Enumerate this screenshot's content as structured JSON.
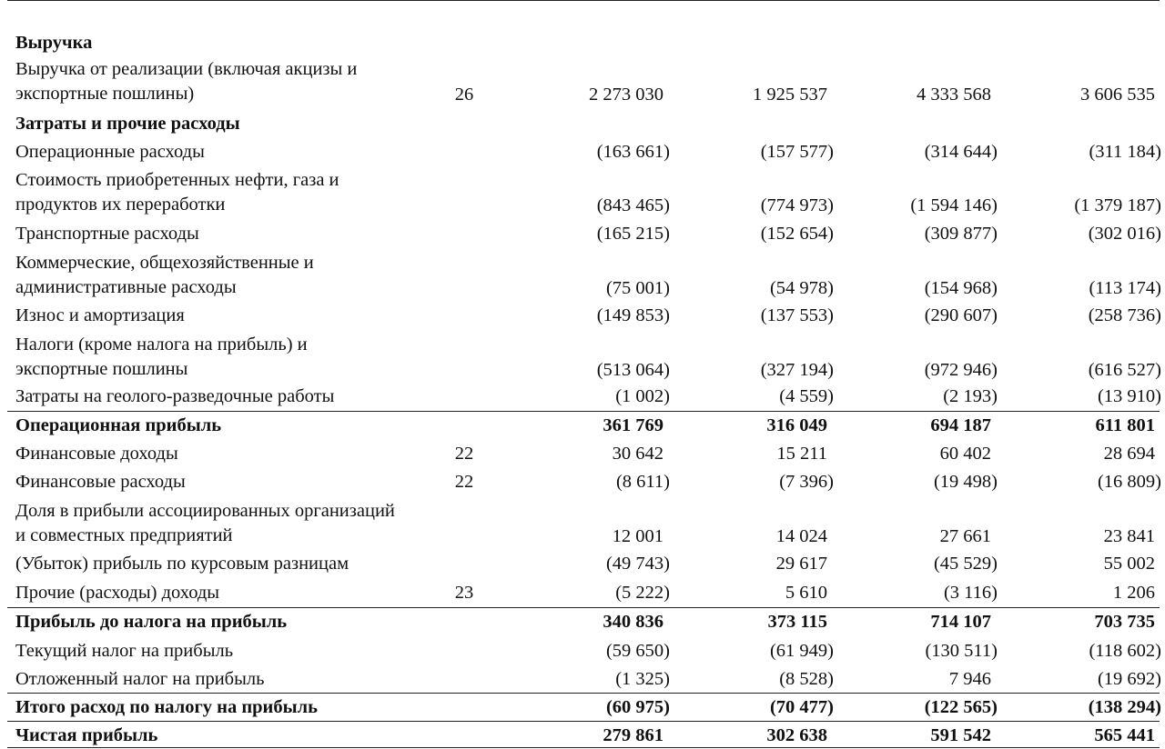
{
  "rows": [
    {
      "label": "Выручка",
      "bold": true,
      "note": "",
      "values": []
    },
    {
      "label": "Выручка от реализации (включая акцизы и экспортные пошлины)",
      "note": "26",
      "values": [
        "2 273 030",
        "1 925 537",
        "4 333 568",
        "3 606 535"
      ]
    },
    {
      "label": "Затраты и прочие расходы",
      "bold": true,
      "note": "",
      "values": []
    },
    {
      "label": "Операционные расходы",
      "note": "",
      "values": [
        "(163 661)",
        "(157 577)",
        "(314 644)",
        "(311 184)"
      ]
    },
    {
      "label": "Стоимость приобретенных нефти, газа и продуктов их переработки",
      "note": "",
      "values": [
        "(843 465)",
        "(774 973)",
        "(1 594 146)",
        "(1 379 187)"
      ]
    },
    {
      "label": "Транспортные расходы",
      "note": "",
      "values": [
        "(165 215)",
        "(152 654)",
        "(309 877)",
        "(302 016)"
      ]
    },
    {
      "label": "Коммерческие, общехозяйственные и административные расходы",
      "note": "",
      "values": [
        "(75 001)",
        "(54 978)",
        "(154 968)",
        "(113 174)"
      ]
    },
    {
      "label": "Износ и амортизация",
      "note": "",
      "values": [
        "(149 853)",
        "(137 553)",
        "(290 607)",
        "(258 736)"
      ]
    },
    {
      "label": "Налоги (кроме налога на прибыль) и экспортные пошлины",
      "note": "",
      "values": [
        "(513 064)",
        "(327 194)",
        "(972 946)",
        "(616 527)"
      ]
    },
    {
      "label": "Затраты на геолого-разведочные работы",
      "note": "",
      "values": [
        "(1 002)",
        "(4 559)",
        "(2 193)",
        "(13 910)"
      ]
    },
    {
      "label": "Операционная прибыль",
      "bold": true,
      "note": "",
      "values": [
        "361 769",
        "316 049",
        "694 187",
        "611 801"
      ]
    },
    {
      "label": "Финансовые доходы",
      "note": "22",
      "values": [
        "30 642",
        "15 211",
        "60 402",
        "28 694"
      ]
    },
    {
      "label": "Финансовые расходы",
      "note": "22",
      "values": [
        "(8 611)",
        "(7 396)",
        "(19 498)",
        "(16 809)"
      ]
    },
    {
      "label": "Доля в прибыли ассоциированных организаций и совместных предприятий",
      "note": "",
      "values": [
        "12 001",
        "14 024",
        "27 661",
        "23 841"
      ]
    },
    {
      "label": "(Убыток) прибыль по курсовым разницам",
      "note": "",
      "values": [
        "(49 743)",
        "29 617",
        "(45 529)",
        "55 002"
      ]
    },
    {
      "label": "Прочие (расходы) доходы",
      "note": "23",
      "values": [
        "(5 222)",
        "5 610",
        "(3 116)",
        "1 206"
      ]
    },
    {
      "label": "Прибыль до налога на прибыль",
      "bold": true,
      "note": "",
      "values": [
        "340 836",
        "373 115",
        "714 107",
        "703 735"
      ]
    },
    {
      "label": "Текущий налог на прибыль",
      "note": "",
      "values": [
        "(59 650)",
        "(61 949)",
        "(130 511)",
        "(118 602)"
      ]
    },
    {
      "label": "Отложенный налог на прибыль",
      "note": "",
      "values": [
        "(1 325)",
        "(8 528)",
        "7 946",
        "(19 692)"
      ]
    },
    {
      "label": "Итого расход по налогу на прибыль",
      "bold": true,
      "note": "",
      "values": [
        "(60 975)",
        "(70 477)",
        "(122 565)",
        "(138 294)"
      ]
    },
    {
      "label": "Чистая прибыль",
      "bold": true,
      "note": "",
      "values": [
        "279 861",
        "302 638",
        "591 542",
        "565 441"
      ]
    }
  ]
}
